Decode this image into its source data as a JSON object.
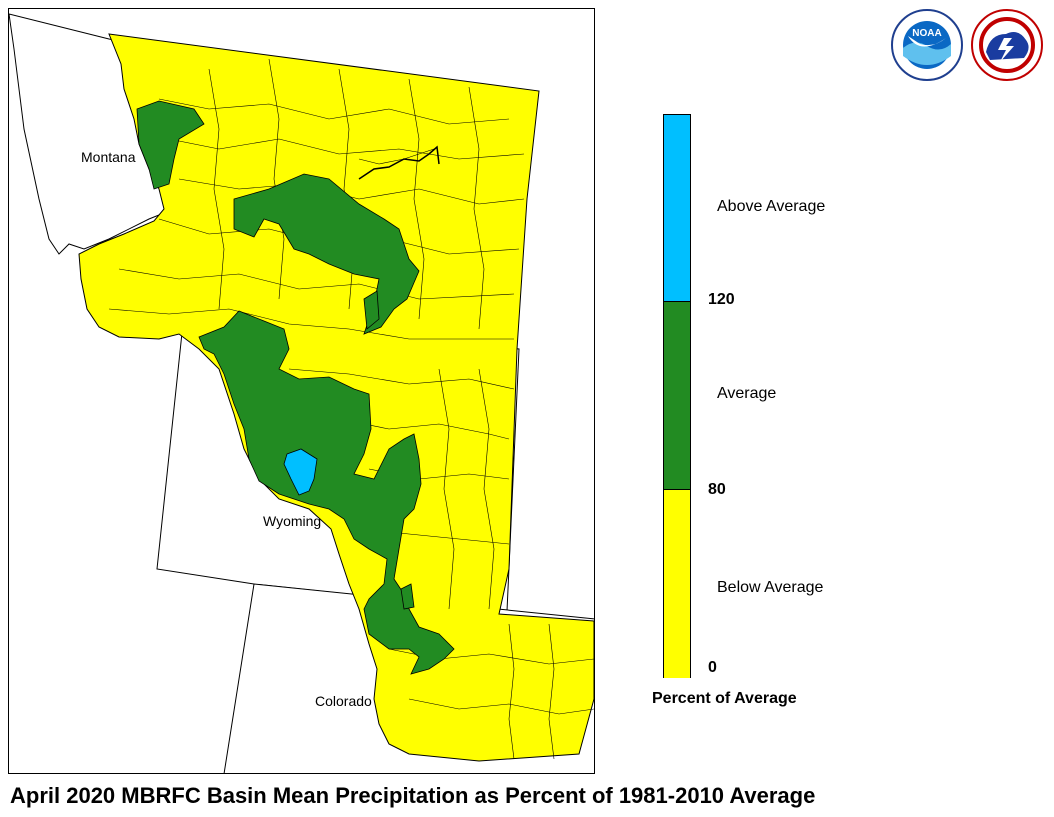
{
  "title": "April 2020 MBRFC Basin Mean Precipitation as Percent of 1981-2010 Average",
  "state_labels": {
    "montana": "Montana",
    "wyoming": "Wyoming",
    "colorado": "Colorado"
  },
  "legend": {
    "title": "Percent of Average",
    "categories": [
      {
        "label": "Above Average",
        "color": "#00bfff"
      },
      {
        "label": "Average",
        "color": "#228b22"
      },
      {
        "label": "Below Average",
        "color": "#ffff00"
      }
    ],
    "ticks": [
      "120",
      "80",
      "0"
    ]
  },
  "logos": {
    "noaa": {
      "text": "NOAA",
      "name": "noaa-logo"
    },
    "nws": {
      "name": "nws-logo"
    }
  },
  "colors": {
    "below": "#ffff00",
    "average": "#228b22",
    "above": "#00bfff",
    "outline": "#000000"
  }
}
